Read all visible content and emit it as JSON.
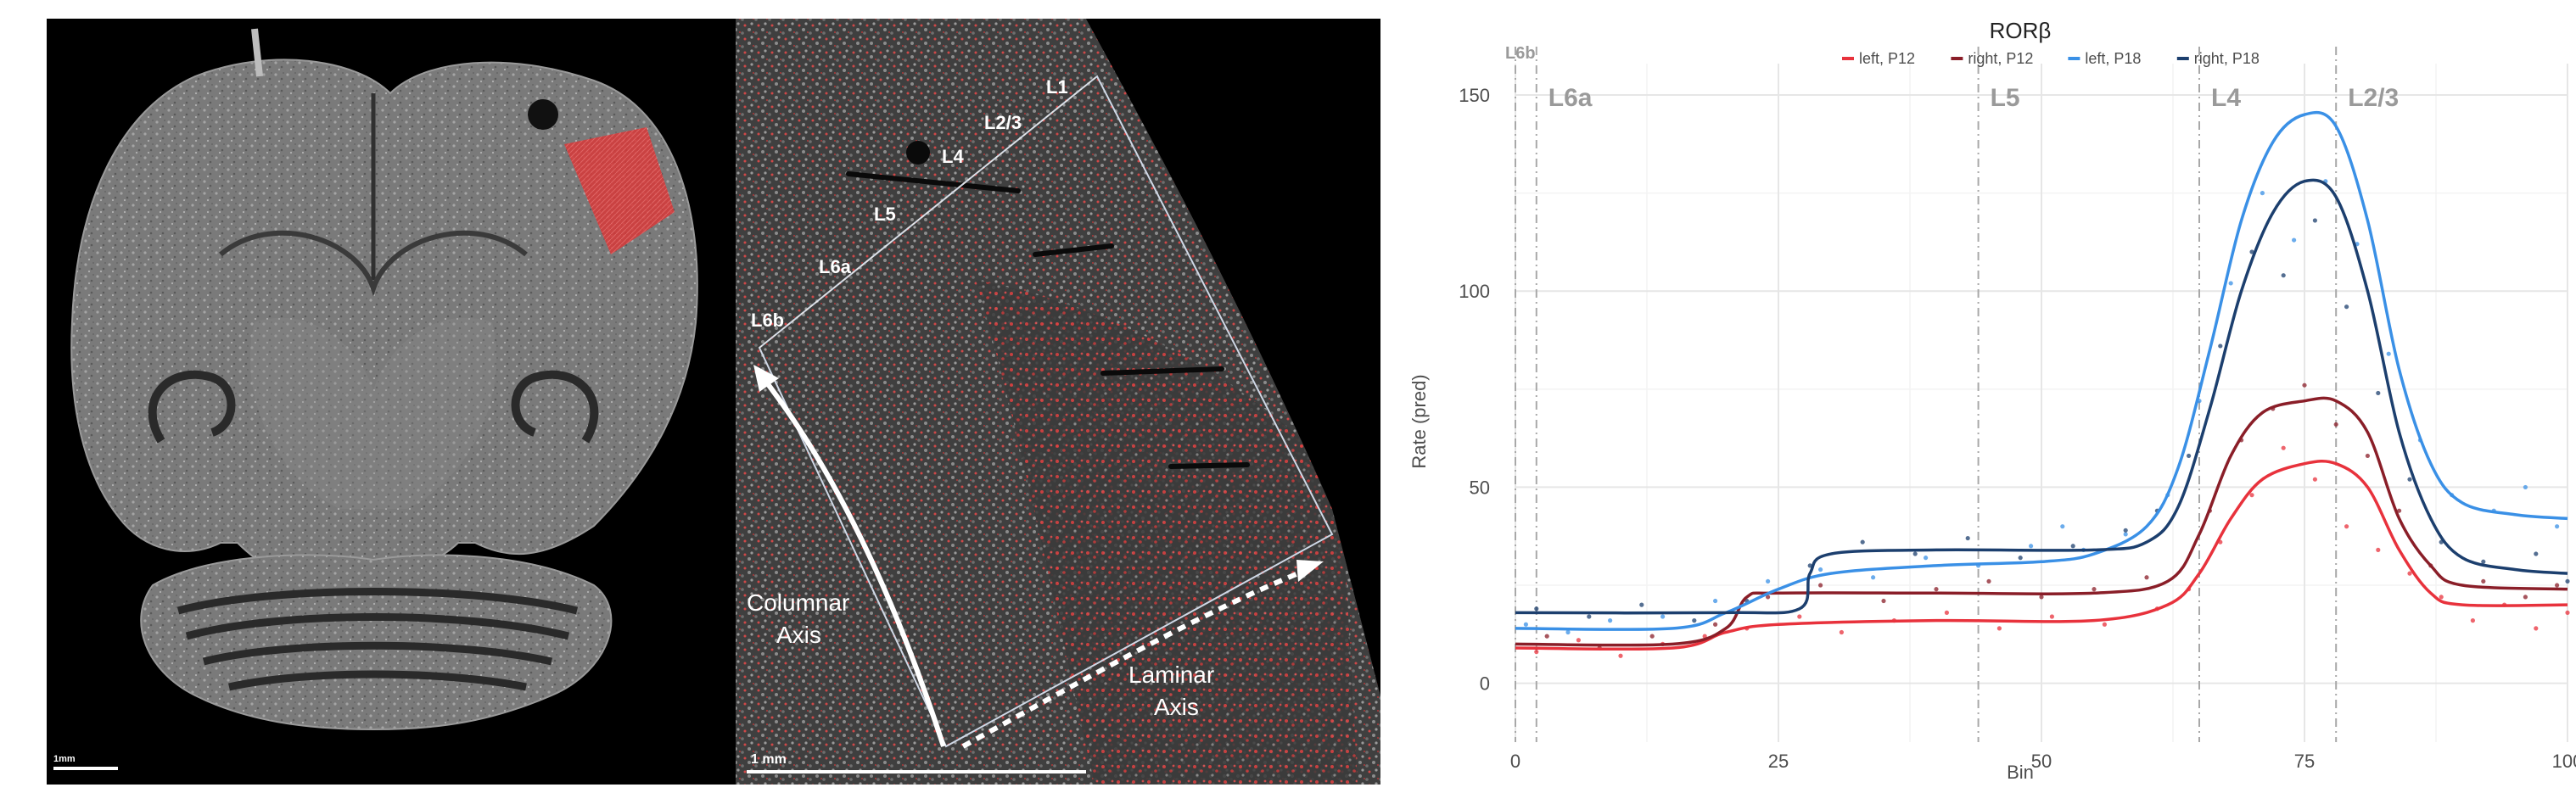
{
  "micrograph": {
    "layer_labels": [
      "L1",
      "L2/3",
      "L4",
      "L5",
      "L6a",
      "L6b"
    ],
    "columnar_axis": [
      "Columnar",
      "Axis"
    ],
    "laminar_axis": [
      "Laminar",
      "Axis"
    ],
    "scalebar_whole": "1mm",
    "scalebar_zoom": "1 mm",
    "colors": {
      "background": "#000000",
      "tissue": "#8a8a8a",
      "highlight": "#e03030"
    }
  },
  "chart_data": {
    "type": "line",
    "title": "RORβ",
    "xlabel": "Bin",
    "ylabel": "Rate (pred)",
    "xlim": [
      0,
      100
    ],
    "ylim": [
      -15,
      158
    ],
    "xticks": [
      0,
      25,
      50,
      75,
      100
    ],
    "yticks": [
      0,
      50,
      100,
      150
    ],
    "grid": true,
    "legend_position": "top-center",
    "boundaries": [
      {
        "label": "L6b",
        "x": 0
      },
      {
        "label": "L6a",
        "x": 2
      },
      {
        "label": "L5",
        "x": 44
      },
      {
        "label": "L4",
        "x": 65
      },
      {
        "label": "L2/3",
        "x": 78
      }
    ],
    "series": [
      {
        "name": "left, P12",
        "color": "#e8323c",
        "x": [
          0,
          15,
          20,
          25,
          40,
          55,
          62,
          65,
          68,
          71,
          75,
          78,
          81,
          84,
          87,
          90,
          100
        ],
        "values": [
          9,
          9,
          13,
          15,
          16,
          16,
          20,
          28,
          42,
          52,
          56,
          56,
          50,
          34,
          23,
          20,
          20
        ]
      },
      {
        "name": "right, P12",
        "color": "#8a1e28",
        "x": [
          0,
          15,
          20,
          22,
          25,
          40,
          55,
          62,
          65,
          68,
          71,
          75,
          78,
          81,
          84,
          87,
          90,
          100
        ],
        "values": [
          10,
          10,
          14,
          22,
          23,
          23,
          23,
          26,
          38,
          58,
          69,
          72,
          72,
          64,
          42,
          30,
          25,
          24
        ]
      },
      {
        "name": "left, P18",
        "color": "#3a90e6",
        "x": [
          0,
          15,
          20,
          25,
          30,
          40,
          50,
          55,
          60,
          63,
          66,
          69,
          72,
          75,
          78,
          81,
          84,
          87,
          90,
          95,
          100
        ],
        "values": [
          14,
          14,
          18,
          24,
          28,
          30,
          31,
          33,
          40,
          55,
          85,
          118,
          138,
          145,
          142,
          118,
          80,
          56,
          46,
          43,
          42
        ]
      },
      {
        "name": "right, P18",
        "color": "#1c3f6e",
        "x": [
          0,
          20,
          27,
          28,
          30,
          40,
          55,
          60,
          63,
          66,
          69,
          72,
          75,
          78,
          81,
          84,
          87,
          90,
          95,
          100
        ],
        "values": [
          18,
          18,
          19,
          28,
          33,
          34,
          34,
          36,
          45,
          70,
          100,
          120,
          128,
          124,
          100,
          64,
          42,
          32,
          29,
          28
        ]
      }
    ],
    "scatter_points": [
      {
        "series": "left, P12",
        "x": 2,
        "y": 8
      },
      {
        "series": "left, P12",
        "x": 6,
        "y": 11
      },
      {
        "series": "left, P12",
        "x": 10,
        "y": 7
      },
      {
        "series": "left, P12",
        "x": 14,
        "y": 10
      },
      {
        "series": "left, P12",
        "x": 18,
        "y": 12
      },
      {
        "series": "left, P12",
        "x": 22,
        "y": 14
      },
      {
        "series": "left, P12",
        "x": 27,
        "y": 17
      },
      {
        "series": "left, P12",
        "x": 31,
        "y": 13
      },
      {
        "series": "left, P12",
        "x": 36,
        "y": 16
      },
      {
        "series": "left, P12",
        "x": 41,
        "y": 18
      },
      {
        "series": "left, P12",
        "x": 46,
        "y": 14
      },
      {
        "series": "left, P12",
        "x": 51,
        "y": 17
      },
      {
        "series": "left, P12",
        "x": 56,
        "y": 15
      },
      {
        "series": "left, P12",
        "x": 61,
        "y": 19
      },
      {
        "series": "left, P12",
        "x": 64,
        "y": 24
      },
      {
        "series": "left, P12",
        "x": 67,
        "y": 36
      },
      {
        "series": "left, P12",
        "x": 70,
        "y": 48
      },
      {
        "series": "left, P12",
        "x": 73,
        "y": 60
      },
      {
        "series": "left, P12",
        "x": 76,
        "y": 52
      },
      {
        "series": "left, P12",
        "x": 79,
        "y": 40
      },
      {
        "series": "left, P12",
        "x": 82,
        "y": 34
      },
      {
        "series": "left, P12",
        "x": 85,
        "y": 28
      },
      {
        "series": "left, P12",
        "x": 88,
        "y": 22
      },
      {
        "series": "left, P12",
        "x": 91,
        "y": 16
      },
      {
        "series": "left, P12",
        "x": 94,
        "y": 20
      },
      {
        "series": "left, P12",
        "x": 97,
        "y": 14
      },
      {
        "series": "left, P12",
        "x": 100,
        "y": 18
      },
      {
        "series": "right, P12",
        "x": 3,
        "y": 12
      },
      {
        "series": "right, P12",
        "x": 8,
        "y": 9
      },
      {
        "series": "right, P12",
        "x": 13,
        "y": 12
      },
      {
        "series": "right, P12",
        "x": 19,
        "y": 15
      },
      {
        "series": "right, P12",
        "x": 24,
        "y": 22
      },
      {
        "series": "right, P12",
        "x": 29,
        "y": 25
      },
      {
        "series": "right, P12",
        "x": 35,
        "y": 21
      },
      {
        "series": "right, P12",
        "x": 40,
        "y": 24
      },
      {
        "series": "right, P12",
        "x": 45,
        "y": 26
      },
      {
        "series": "right, P12",
        "x": 50,
        "y": 22
      },
      {
        "series": "right, P12",
        "x": 55,
        "y": 24
      },
      {
        "series": "right, P12",
        "x": 60,
        "y": 27
      },
      {
        "series": "right, P12",
        "x": 66,
        "y": 44
      },
      {
        "series": "right, P12",
        "x": 69,
        "y": 62
      },
      {
        "series": "right, P12",
        "x": 72,
        "y": 70
      },
      {
        "series": "right, P12",
        "x": 75,
        "y": 76
      },
      {
        "series": "right, P12",
        "x": 78,
        "y": 66
      },
      {
        "series": "right, P12",
        "x": 81,
        "y": 58
      },
      {
        "series": "right, P12",
        "x": 84,
        "y": 44
      },
      {
        "series": "right, P12",
        "x": 87,
        "y": 30
      },
      {
        "series": "right, P12",
        "x": 92,
        "y": 26
      },
      {
        "series": "right, P12",
        "x": 96,
        "y": 22
      },
      {
        "series": "right, P12",
        "x": 99,
        "y": 25
      },
      {
        "series": "left, P18",
        "x": 1,
        "y": 15
      },
      {
        "series": "left, P18",
        "x": 5,
        "y": 13
      },
      {
        "series": "left, P18",
        "x": 9,
        "y": 16
      },
      {
        "series": "left, P18",
        "x": 14,
        "y": 17
      },
      {
        "series": "left, P18",
        "x": 19,
        "y": 21
      },
      {
        "series": "left, P18",
        "x": 24,
        "y": 26
      },
      {
        "series": "left, P18",
        "x": 29,
        "y": 29
      },
      {
        "series": "left, P18",
        "x": 34,
        "y": 27
      },
      {
        "series": "left, P18",
        "x": 39,
        "y": 32
      },
      {
        "series": "left, P18",
        "x": 44,
        "y": 30
      },
      {
        "series": "left, P18",
        "x": 49,
        "y": 35
      },
      {
        "series": "left, P18",
        "x": 52,
        "y": 40
      },
      {
        "series": "left, P18",
        "x": 54,
        "y": 34
      },
      {
        "series": "left, P18",
        "x": 58,
        "y": 38
      },
      {
        "series": "left, P18",
        "x": 62,
        "y": 48
      },
      {
        "series": "left, P18",
        "x": 65,
        "y": 72
      },
      {
        "series": "left, P18",
        "x": 68,
        "y": 102
      },
      {
        "series": "left, P18",
        "x": 71,
        "y": 125
      },
      {
        "series": "left, P18",
        "x": 74,
        "y": 113
      },
      {
        "series": "left, P18",
        "x": 77,
        "y": 128
      },
      {
        "series": "left, P18",
        "x": 80,
        "y": 112
      },
      {
        "series": "left, P18",
        "x": 83,
        "y": 84
      },
      {
        "series": "left, P18",
        "x": 86,
        "y": 62
      },
      {
        "series": "left, P18",
        "x": 89,
        "y": 48
      },
      {
        "series": "left, P18",
        "x": 93,
        "y": 44
      },
      {
        "series": "left, P18",
        "x": 96,
        "y": 50
      },
      {
        "series": "left, P18",
        "x": 99,
        "y": 40
      },
      {
        "series": "right, P18",
        "x": 2,
        "y": 19
      },
      {
        "series": "right, P18",
        "x": 7,
        "y": 17
      },
      {
        "series": "right, P18",
        "x": 12,
        "y": 20
      },
      {
        "series": "right, P18",
        "x": 17,
        "y": 16
      },
      {
        "series": "right, P18",
        "x": 22,
        "y": 21
      },
      {
        "series": "right, P18",
        "x": 28,
        "y": 30
      },
      {
        "series": "right, P18",
        "x": 33,
        "y": 36
      },
      {
        "series": "right, P18",
        "x": 38,
        "y": 33
      },
      {
        "series": "right, P18",
        "x": 43,
        "y": 37
      },
      {
        "series": "right, P18",
        "x": 48,
        "y": 32
      },
      {
        "series": "right, P18",
        "x": 53,
        "y": 35
      },
      {
        "series": "right, P18",
        "x": 58,
        "y": 39
      },
      {
        "series": "right, P18",
        "x": 61,
        "y": 44
      },
      {
        "series": "right, P18",
        "x": 64,
        "y": 58
      },
      {
        "series": "right, P18",
        "x": 67,
        "y": 86
      },
      {
        "series": "right, P18",
        "x": 70,
        "y": 110
      },
      {
        "series": "right, P18",
        "x": 73,
        "y": 104
      },
      {
        "series": "right, P18",
        "x": 76,
        "y": 118
      },
      {
        "series": "right, P18",
        "x": 79,
        "y": 96
      },
      {
        "series": "right, P18",
        "x": 82,
        "y": 74
      },
      {
        "series": "right, P18",
        "x": 85,
        "y": 52
      },
      {
        "series": "right, P18",
        "x": 88,
        "y": 36
      },
      {
        "series": "right, P18",
        "x": 92,
        "y": 31
      },
      {
        "series": "right, P18",
        "x": 97,
        "y": 33
      },
      {
        "series": "right, P18",
        "x": 100,
        "y": 26
      }
    ]
  }
}
